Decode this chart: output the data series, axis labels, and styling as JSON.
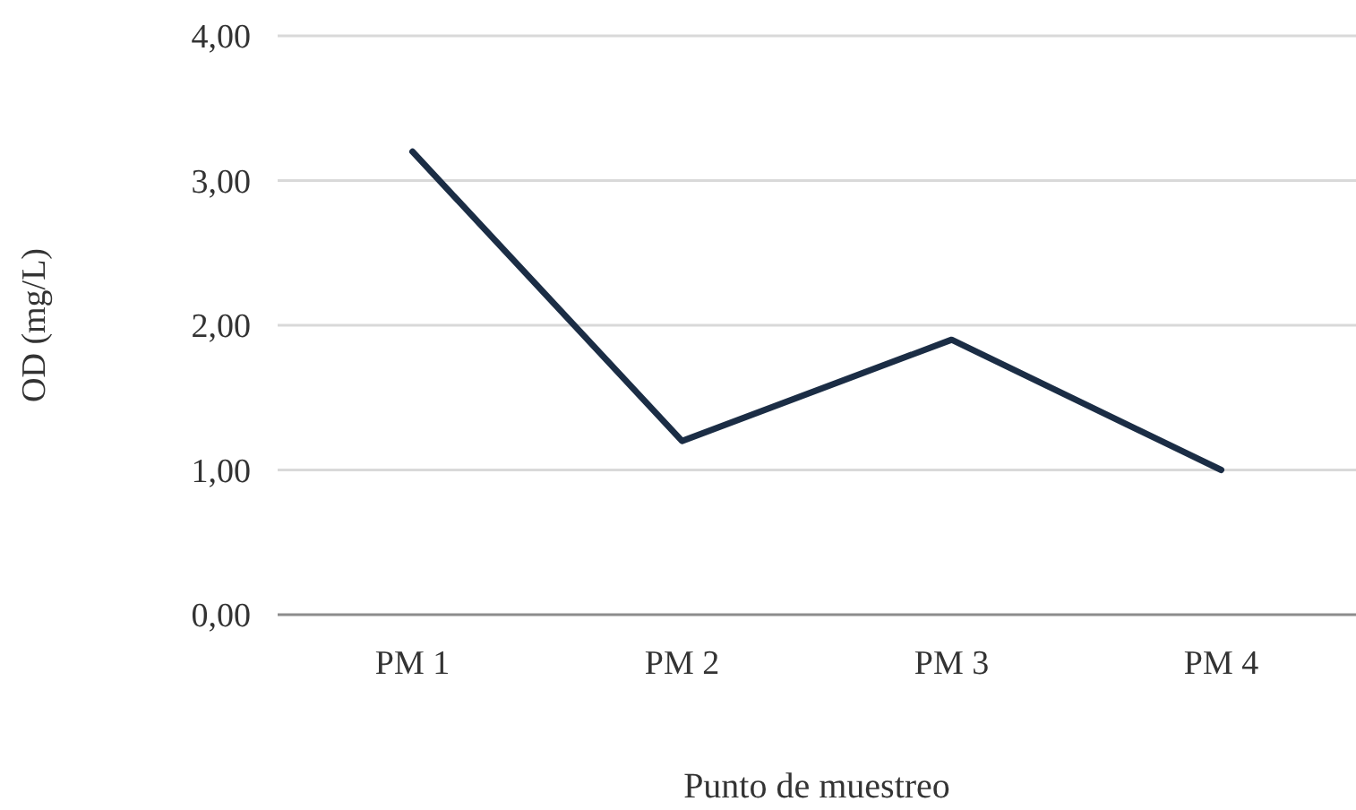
{
  "chart_data": {
    "type": "line",
    "xlabel": "Punto de muestreo",
    "ylabel": "OD (mg/L)",
    "categories": [
      "PM 1",
      "PM 2",
      "PM 3",
      "PM 4"
    ],
    "series": [
      {
        "color": "#1b2d45",
        "values": [
          3.2,
          1.2,
          1.9,
          1.0
        ]
      }
    ],
    "ylim": [
      0,
      4
    ],
    "yticks": [
      {
        "value": 0,
        "label": "0,00"
      },
      {
        "value": 1,
        "label": "1,00"
      },
      {
        "value": 2,
        "label": "2,00"
      },
      {
        "value": 3,
        "label": "3,00"
      },
      {
        "value": 4,
        "label": "4,00"
      }
    ],
    "grid": "y",
    "marker": "none",
    "line_style": "solid"
  }
}
